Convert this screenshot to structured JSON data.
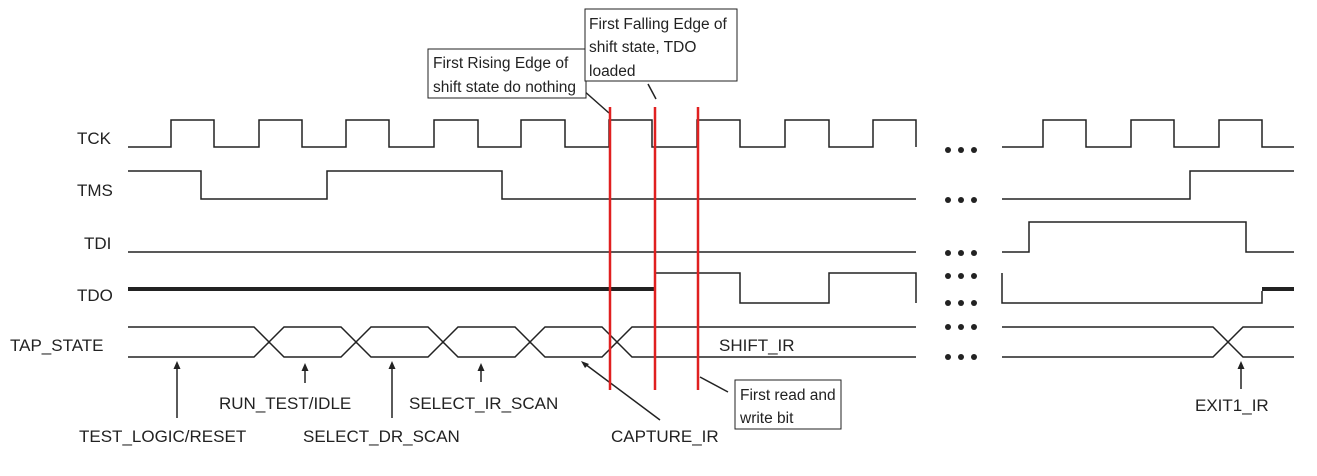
{
  "signals": {
    "tck": "TCK",
    "tms": "TMS",
    "tdi": "TDI",
    "tdo": "TDO",
    "tap_state": "TAP_STATE"
  },
  "states": {
    "test_logic_reset": "TEST_LOGIC/RESET",
    "run_test_idle": "RUN_TEST/IDLE",
    "select_dr_scan": "SELECT_DR_SCAN",
    "select_ir_scan": "SELECT_IR_SCAN",
    "capture_ir": "CAPTURE_IR",
    "shift_ir": "SHIFT_IR",
    "exit1_ir": "EXIT1_IR"
  },
  "callouts": {
    "rising_edge": [
      "First Rising Edge of",
      "shift state do nothing"
    ],
    "falling_edge": [
      "First Falling Edge of",
      "shift state, TDO",
      "loaded"
    ],
    "read_write": [
      "First read and",
      "write bit"
    ]
  },
  "colors": {
    "signal": "#222222",
    "marker": "#e02020",
    "callout_border": "#222222"
  }
}
